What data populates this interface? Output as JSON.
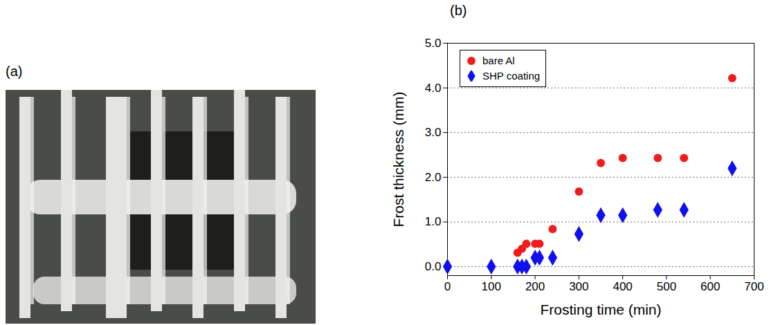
{
  "chart_data": [
    {
      "type": "photo",
      "title": "(a)"
    },
    {
      "type": "scatter",
      "title": "(b)",
      "x_label": "Frosting time (min)",
      "y_label": "Frost thickness (mm)",
      "xlim": [
        0,
        700
      ],
      "xticks": [
        0,
        100,
        200,
        300,
        400,
        500,
        600,
        700
      ],
      "ylim": [
        -0.2,
        5.0
      ],
      "yticks": [
        {
          "value": 0,
          "label": "0.0"
        },
        {
          "value": 1,
          "label": "1.0"
        },
        {
          "value": 2,
          "label": "2.0"
        },
        {
          "value": 3,
          "label": "3.0"
        },
        {
          "value": 4,
          "label": "4.0"
        },
        {
          "value": 5,
          "label": "5.0"
        }
      ],
      "grid": true,
      "legend": "upper left",
      "series": [
        {
          "name": "bare Al",
          "color": "#ee1c1c",
          "marker": "circle",
          "x": [
            160,
            170,
            180,
            200,
            210,
            240,
            300,
            350,
            400,
            480,
            540,
            650
          ],
          "values": [
            0.31,
            0.4,
            0.51,
            0.51,
            0.51,
            0.84,
            1.68,
            2.32,
            2.43,
            2.43,
            2.43,
            4.22
          ]
        },
        {
          "name": "SHP coating",
          "color": "#1010ee",
          "marker": "diamond",
          "x": [
            0,
            100,
            160,
            170,
            180,
            200,
            210,
            240,
            300,
            350,
            400,
            480,
            540,
            650
          ],
          "values": [
            0,
            0,
            0,
            0,
            0,
            0.2,
            0.2,
            0.2,
            0.73,
            1.15,
            1.15,
            1.27,
            1.27,
            2.2
          ]
        }
      ]
    }
  ]
}
